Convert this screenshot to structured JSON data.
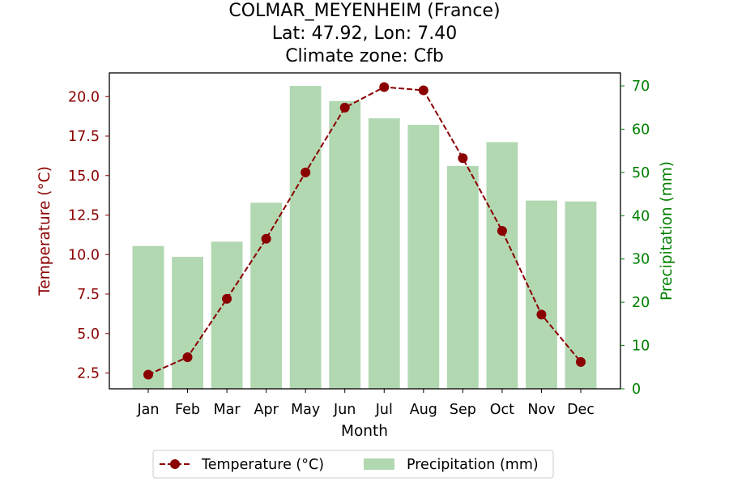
{
  "chart_data": {
    "type": "bar",
    "title_lines": [
      "COLMAR_MEYENHEIM (France)",
      "Lat: 47.92, Lon: 7.40",
      "Climate zone: Cfb"
    ],
    "xlabel": "Month",
    "categories": [
      "Jan",
      "Feb",
      "Mar",
      "Apr",
      "May",
      "Jun",
      "Jul",
      "Aug",
      "Sep",
      "Oct",
      "Nov",
      "Dec"
    ],
    "left_axis": {
      "label": "Temperature (°C)",
      "ylim": [
        1.5,
        21.5
      ],
      "ticks": [
        2.5,
        5.0,
        7.5,
        10.0,
        12.5,
        15.0,
        17.5,
        20.0
      ],
      "tick_labels": [
        "2.5",
        "5.0",
        "7.5",
        "10.0",
        "12.5",
        "15.0",
        "17.5",
        "20.0"
      ],
      "color": "#8b0000"
    },
    "right_axis": {
      "label": "Precipitation (mm)",
      "ylim": [
        0,
        73
      ],
      "ticks": [
        0,
        10,
        20,
        30,
        40,
        50,
        60,
        70
      ],
      "tick_labels": [
        "0",
        "10",
        "20",
        "30",
        "40",
        "50",
        "60",
        "70"
      ],
      "color": "#008000"
    },
    "series": [
      {
        "name": "Temperature (°C)",
        "type": "line",
        "axis": "left",
        "color": "#8b0000",
        "style": "dashed",
        "marker": "circle",
        "values": [
          2.4,
          3.5,
          7.2,
          11.0,
          15.2,
          19.3,
          20.6,
          20.4,
          16.1,
          11.5,
          6.2,
          3.2
        ]
      },
      {
        "name": "Precipitation (mm)",
        "type": "bar",
        "axis": "right",
        "color": "#b2d8b2",
        "values": [
          33.0,
          30.5,
          34.0,
          43.0,
          70.0,
          66.5,
          62.5,
          61.0,
          51.5,
          57.0,
          43.5,
          43.3
        ]
      }
    ],
    "legend_placement": "bottom-center",
    "grid": false
  }
}
